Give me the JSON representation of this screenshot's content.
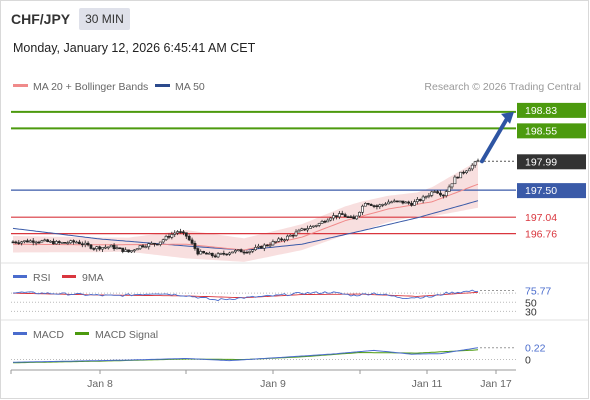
{
  "header": {
    "symbol": "CHF/JPY",
    "timeframe": "30 MIN",
    "datetime": "Monday, January 12, 2026 6:45:41 AM CET"
  },
  "legend": {
    "ma20_label": "MA 20 + Bollinger Bands",
    "ma50_label": "MA 50",
    "credit": "Research © 2026 Trading Central"
  },
  "colors": {
    "green": "#4c9a0e",
    "blue": "#3a5aa8",
    "red": "#d9363e",
    "ma20": "#f08a8a",
    "band": "#f6d4d4",
    "dark": "#333333",
    "arrow": "#2e55a3",
    "rsi": "#4a6ccd",
    "rsi_ma": "#d9363e",
    "macd": "#4a6ccd",
    "signal": "#4c9a0e"
  },
  "chart_data": [
    {
      "type": "candlestick",
      "title": "CHF/JPY",
      "ylim": [
        196.38,
        199.1
      ],
      "levels": [
        {
          "value": 198.83,
          "label": "198.83",
          "kind": "resistance",
          "color": "#4c9a0e",
          "style": "box"
        },
        {
          "value": 198.55,
          "label": "198.55",
          "kind": "resistance",
          "color": "#4c9a0e",
          "style": "box"
        },
        {
          "value": 197.99,
          "label": "197.99",
          "kind": "last-price",
          "color": "#333333",
          "style": "box"
        },
        {
          "value": 197.5,
          "label": "197.50",
          "kind": "pivot",
          "color": "#3a5aa8",
          "style": "box"
        },
        {
          "value": 197.04,
          "label": "197.04",
          "kind": "support",
          "color": "#d9363e",
          "style": "text"
        },
        {
          "value": 196.76,
          "label": "196.76",
          "kind": "support",
          "color": "#d9363e",
          "style": "text"
        }
      ],
      "x_ticks": [
        "Jan 8",
        "Jan 9",
        "Jan 11",
        "Jan 17"
      ],
      "ohlc_anchors": [
        {
          "i": 0,
          "close": 196.62
        },
        {
          "i": 8,
          "close": 196.64
        },
        {
          "i": 16,
          "close": 196.6
        },
        {
          "i": 22,
          "close": 196.62
        },
        {
          "i": 28,
          "close": 196.52
        },
        {
          "i": 34,
          "close": 196.54
        },
        {
          "i": 40,
          "close": 196.45
        },
        {
          "i": 44,
          "close": 196.55
        },
        {
          "i": 50,
          "close": 196.6
        },
        {
          "i": 54,
          "close": 196.72
        },
        {
          "i": 57,
          "close": 196.8
        },
        {
          "i": 60,
          "close": 196.72
        },
        {
          "i": 64,
          "close": 196.44
        },
        {
          "i": 70,
          "close": 196.38
        },
        {
          "i": 76,
          "close": 196.46
        },
        {
          "i": 82,
          "close": 196.47
        },
        {
          "i": 88,
          "close": 196.57
        },
        {
          "i": 94,
          "close": 196.68
        },
        {
          "i": 100,
          "close": 196.82
        },
        {
          "i": 106,
          "close": 196.93
        },
        {
          "i": 110,
          "close": 197.05
        },
        {
          "i": 114,
          "close": 197.08
        },
        {
          "i": 118,
          "close": 197.0
        },
        {
          "i": 122,
          "close": 197.3
        },
        {
          "i": 126,
          "close": 197.22
        },
        {
          "i": 130,
          "close": 197.3
        },
        {
          "i": 134,
          "close": 197.3
        },
        {
          "i": 138,
          "close": 197.27
        },
        {
          "i": 142,
          "close": 197.36
        },
        {
          "i": 146,
          "close": 197.5
        },
        {
          "i": 149,
          "close": 197.42
        },
        {
          "i": 153,
          "close": 197.7
        },
        {
          "i": 157,
          "close": 197.85
        },
        {
          "i": 161,
          "close": 197.99
        }
      ],
      "ma20_anchors": [
        {
          "i": 0,
          "v": 196.58
        },
        {
          "i": 30,
          "v": 196.57
        },
        {
          "i": 60,
          "v": 196.58
        },
        {
          "i": 80,
          "v": 196.48
        },
        {
          "i": 100,
          "v": 196.7
        },
        {
          "i": 115,
          "v": 196.98
        },
        {
          "i": 130,
          "v": 197.18
        },
        {
          "i": 145,
          "v": 197.3
        },
        {
          "i": 161,
          "v": 197.6
        }
      ],
      "ma50_anchors": [
        {
          "i": 0,
          "v": 196.85
        },
        {
          "i": 30,
          "v": 196.67
        },
        {
          "i": 60,
          "v": 196.55
        },
        {
          "i": 80,
          "v": 196.48
        },
        {
          "i": 100,
          "v": 196.58
        },
        {
          "i": 120,
          "v": 196.8
        },
        {
          "i": 140,
          "v": 197.03
        },
        {
          "i": 161,
          "v": 197.32
        }
      ],
      "band_width_anchors": [
        {
          "i": 0,
          "v": 0.14
        },
        {
          "i": 40,
          "v": 0.12
        },
        {
          "i": 60,
          "v": 0.24
        },
        {
          "i": 80,
          "v": 0.2
        },
        {
          "i": 100,
          "v": 0.22
        },
        {
          "i": 120,
          "v": 0.25
        },
        {
          "i": 140,
          "v": 0.2
        },
        {
          "i": 161,
          "v": 0.4
        }
      ]
    },
    {
      "type": "line",
      "title": "RSI",
      "series": [
        {
          "name": "RSI"
        },
        {
          "name": "9MA"
        }
      ],
      "ylim": [
        22,
        88
      ],
      "levels": [
        {
          "value": 75.77,
          "label": "75.77",
          "color": "#4a6ccd"
        },
        {
          "value": 50,
          "label": "50",
          "color": "#333333"
        },
        {
          "value": 30,
          "label": "30",
          "color": "#333333"
        }
      ],
      "rsi_anchors": [
        {
          "i": 0,
          "v": 72
        },
        {
          "i": 20,
          "v": 68
        },
        {
          "i": 35,
          "v": 64
        },
        {
          "i": 50,
          "v": 70
        },
        {
          "i": 60,
          "v": 65
        },
        {
          "i": 70,
          "v": 55
        },
        {
          "i": 80,
          "v": 60
        },
        {
          "i": 90,
          "v": 64
        },
        {
          "i": 100,
          "v": 70
        },
        {
          "i": 110,
          "v": 72
        },
        {
          "i": 118,
          "v": 65
        },
        {
          "i": 125,
          "v": 70
        },
        {
          "i": 135,
          "v": 60
        },
        {
          "i": 145,
          "v": 62
        },
        {
          "i": 150,
          "v": 70
        },
        {
          "i": 161,
          "v": 75.77
        }
      ],
      "rsi_ma_anchors": [
        {
          "i": 0,
          "v": 70
        },
        {
          "i": 30,
          "v": 66
        },
        {
          "i": 60,
          "v": 64
        },
        {
          "i": 80,
          "v": 60
        },
        {
          "i": 100,
          "v": 67
        },
        {
          "i": 120,
          "v": 68
        },
        {
          "i": 140,
          "v": 63
        },
        {
          "i": 161,
          "v": 72
        }
      ]
    },
    {
      "type": "line",
      "title": "MACD",
      "series": [
        {
          "name": "MACD"
        },
        {
          "name": "MACD Signal"
        }
      ],
      "ylim": [
        -0.12,
        0.4
      ],
      "levels": [
        {
          "value": 0.22,
          "label": "0.22",
          "color": "#4a6ccd"
        },
        {
          "value": 0,
          "label": "0",
          "color": "#333333"
        }
      ],
      "macd_anchors": [
        {
          "i": 0,
          "v": -0.05
        },
        {
          "i": 20,
          "v": -0.03
        },
        {
          "i": 40,
          "v": -0.01
        },
        {
          "i": 60,
          "v": 0.02
        },
        {
          "i": 75,
          "v": -0.02
        },
        {
          "i": 90,
          "v": 0.03
        },
        {
          "i": 110,
          "v": 0.1
        },
        {
          "i": 125,
          "v": 0.17
        },
        {
          "i": 138,
          "v": 0.1
        },
        {
          "i": 148,
          "v": 0.11
        },
        {
          "i": 161,
          "v": 0.22
        }
      ],
      "signal_anchors": [
        {
          "i": 0,
          "v": -0.06
        },
        {
          "i": 30,
          "v": -0.03
        },
        {
          "i": 60,
          "v": 0.01
        },
        {
          "i": 80,
          "v": 0.0
        },
        {
          "i": 100,
          "v": 0.05
        },
        {
          "i": 120,
          "v": 0.13
        },
        {
          "i": 140,
          "v": 0.12
        },
        {
          "i": 161,
          "v": 0.18
        }
      ]
    }
  ]
}
